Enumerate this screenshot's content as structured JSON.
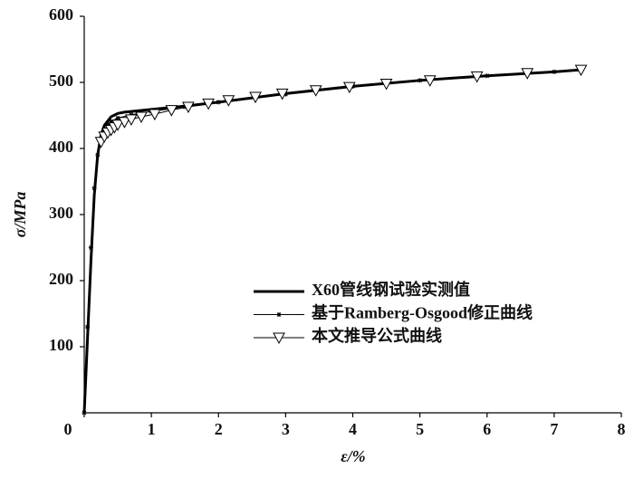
{
  "chart_data": {
    "type": "line",
    "x_label": "ε/%",
    "y_label": "σ/MPa",
    "xlim": [
      0,
      8
    ],
    "ylim": [
      0,
      600
    ],
    "xticks": [
      0,
      1,
      2,
      3,
      4,
      5,
      6,
      7,
      8
    ],
    "yticks": [
      100,
      200,
      300,
      400,
      500,
      600
    ],
    "grid": false,
    "legend_position": "center-right",
    "series": [
      {
        "name": "X60管线钢试验实测值",
        "color": "#000000",
        "line_width": 3,
        "marker": "none",
        "x": [
          0,
          0.1,
          0.15,
          0.2,
          0.25,
          0.3,
          0.4,
          0.5,
          0.6,
          0.8,
          1,
          1.5,
          2,
          3,
          4,
          5,
          6,
          7,
          7.4
        ],
        "values": [
          0,
          230,
          330,
          390,
          420,
          435,
          448,
          453,
          455,
          457,
          459,
          464,
          470,
          483,
          494,
          503,
          510,
          516,
          519
        ]
      },
      {
        "name": "基于Ramberg-Osgood修正曲线",
        "color": "#000000",
        "line_width": 1,
        "marker": "star",
        "x": [
          0,
          0.05,
          0.1,
          0.15,
          0.2,
          0.25,
          0.3,
          0.35,
          0.4,
          0.5,
          0.7,
          1,
          1.5,
          2,
          3,
          4,
          5,
          6,
          7,
          7.4
        ],
        "values": [
          0,
          130,
          250,
          340,
          390,
          415,
          428,
          436,
          441,
          446,
          451,
          456,
          463,
          470,
          482,
          494,
          503,
          510,
          516,
          519
        ]
      },
      {
        "name": "本文推导公式曲线",
        "color": "#000000",
        "line_width": 1,
        "marker": "triangle-down",
        "x": [
          0.25,
          0.3,
          0.35,
          0.4,
          0.45,
          0.5,
          0.6,
          0.7,
          0.85,
          1.05,
          1.3,
          1.55,
          1.85,
          2.15,
          2.55,
          2.95,
          3.45,
          3.95,
          4.5,
          5.15,
          5.85,
          6.6,
          7.4
        ],
        "values": [
          410,
          418,
          424,
          428,
          432,
          436,
          440,
          444,
          448,
          452,
          458,
          463,
          468,
          473,
          478,
          483,
          488,
          493,
          498,
          503,
          509,
          514,
          519
        ]
      }
    ]
  }
}
